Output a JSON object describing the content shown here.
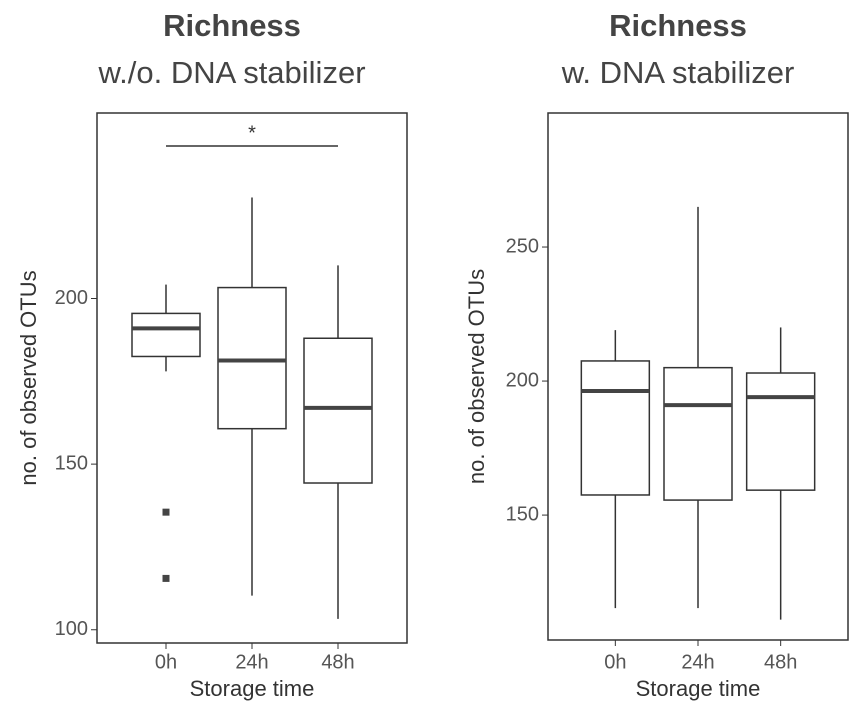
{
  "chart_data": [
    {
      "type": "box",
      "title": "Richness",
      "subtitle": "w./o. DNA stabilizer",
      "x_label": "Storage time",
      "y_label": "no. of observed OTUs",
      "categories": [
        "0h",
        "24h",
        "48h"
      ],
      "boxes": [
        {
          "whisker_low": 178,
          "q1": 182.5,
          "median": 191,
          "q3": 195.5,
          "whisker_high": 204.2,
          "outliers": [
            135.5,
            115.5
          ]
        },
        {
          "whisker_low": 110.3,
          "q1": 160.7,
          "median": 181.3,
          "q3": 203.3,
          "whisker_high": 230.5,
          "outliers": []
        },
        {
          "whisker_low": 103.3,
          "q1": 144.3,
          "median": 167,
          "q3": 188,
          "whisker_high": 210,
          "outliers": []
        }
      ],
      "annotations": [
        {
          "text": "*",
          "between": [
            "0h",
            "48h"
          ]
        }
      ],
      "ylim": [
        96,
        256
      ],
      "yticks": [
        100,
        150,
        200
      ]
    },
    {
      "type": "box",
      "title": "Richness",
      "subtitle": "w. DNA stabilizer",
      "x_label": "Storage time",
      "y_label": "no. of observed OTUs",
      "categories": [
        "0h",
        "24h",
        "48h"
      ],
      "boxes": [
        {
          "whisker_low": 115.3,
          "q1": 157.5,
          "median": 196.3,
          "q3": 207.5,
          "whisker_high": 219,
          "outliers": []
        },
        {
          "whisker_low": 115.3,
          "q1": 155.6,
          "median": 191,
          "q3": 205,
          "whisker_high": 265,
          "outliers": []
        },
        {
          "whisker_low": 111,
          "q1": 159.3,
          "median": 194,
          "q3": 203,
          "whisker_high": 220,
          "outliers": []
        }
      ],
      "annotations": [],
      "ylim": [
        103.4,
        300
      ],
      "yticks": [
        150,
        200,
        250
      ]
    }
  ]
}
